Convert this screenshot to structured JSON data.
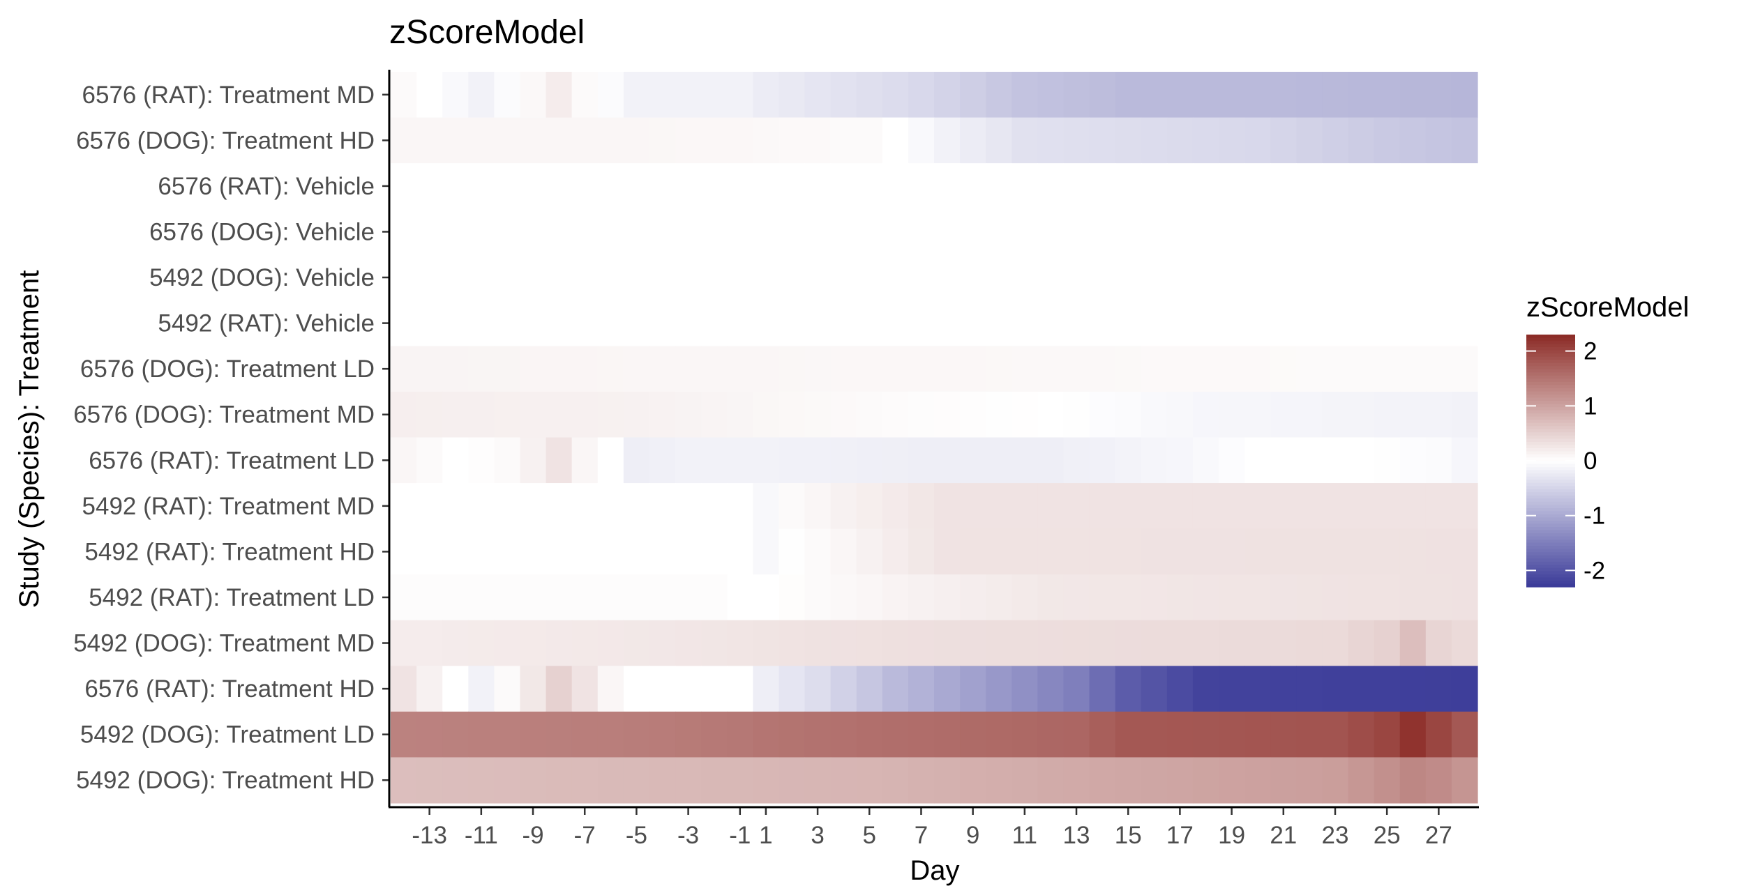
{
  "chart_data": {
    "type": "heatmap",
    "title": "zScoreModel",
    "xlabel": "Day",
    "ylabel": "Study (Species): Treatment",
    "x_ticks": [
      -13,
      -11,
      -9,
      -7,
      -5,
      -3,
      -1,
      1,
      3,
      5,
      7,
      9,
      11,
      13,
      15,
      17,
      19,
      21,
      23,
      25,
      27
    ],
    "x_range": [
      -14,
      28
    ],
    "days": [
      -14,
      -13,
      -12,
      -11,
      -10,
      -9,
      -8,
      -7,
      -6,
      -5,
      -4,
      -3,
      -2,
      -1,
      1,
      2,
      3,
      4,
      5,
      6,
      7,
      8,
      9,
      10,
      11,
      12,
      13,
      14,
      15,
      16,
      17,
      18,
      19,
      20,
      21,
      22,
      23,
      24,
      25,
      26,
      27,
      28
    ],
    "grid": false,
    "legend": {
      "title": "zScoreModel",
      "position": "right",
      "breaks": [
        2,
        1,
        0,
        -1,
        -2
      ],
      "range": [
        -2.3,
        2.3
      ],
      "colors": {
        "high": "#8b2a25",
        "mid": "#ffffff",
        "low": "#3a3a98"
      }
    },
    "rows": [
      {
        "label": "6576 (RAT): Treatment MD",
        "knots": [
          [
            -14,
            0.05
          ],
          [
            -13,
            0
          ],
          [
            -11,
            -0.15
          ],
          [
            -10,
            -0.05
          ],
          [
            -8,
            0.2
          ],
          [
            -7,
            0.05
          ],
          [
            -5,
            -0.15
          ],
          [
            -1,
            -0.15
          ],
          [
            3,
            -0.3
          ],
          [
            7,
            -0.45
          ],
          [
            11,
            -0.7
          ],
          [
            15,
            -0.8
          ],
          [
            20,
            -0.8
          ],
          [
            28,
            -0.85
          ]
        ]
      },
      {
        "label": "6576 (DOG): Treatment HD",
        "knots": [
          [
            -14,
            0.1
          ],
          [
            -7,
            0.1
          ],
          [
            0,
            0.08
          ],
          [
            5,
            0.05
          ],
          [
            6,
            0
          ],
          [
            8,
            -0.15
          ],
          [
            11,
            -0.35
          ],
          [
            15,
            -0.4
          ],
          [
            20,
            -0.45
          ],
          [
            24,
            -0.6
          ],
          [
            28,
            -0.7
          ]
        ]
      },
      {
        "label": "6576 (RAT): Vehicle",
        "knots": [
          [
            -14,
            0
          ],
          [
            28,
            0
          ]
        ]
      },
      {
        "label": "6576 (DOG): Vehicle",
        "knots": [
          [
            -14,
            0
          ],
          [
            28,
            0
          ]
        ]
      },
      {
        "label": "5492 (DOG): Vehicle",
        "knots": [
          [
            -14,
            0
          ],
          [
            28,
            0
          ]
        ]
      },
      {
        "label": "5492 (RAT): Vehicle",
        "knots": [
          [
            -14,
            0
          ],
          [
            28,
            0
          ]
        ]
      },
      {
        "label": "6576 (DOG): Treatment LD",
        "knots": [
          [
            -14,
            0.12
          ],
          [
            -5,
            0.1
          ],
          [
            10,
            0.08
          ],
          [
            20,
            0.06
          ],
          [
            28,
            0.05
          ]
        ]
      },
      {
        "label": "6576 (DOG): Treatment MD",
        "knots": [
          [
            -14,
            0.18
          ],
          [
            -5,
            0.15
          ],
          [
            5,
            0.05
          ],
          [
            12,
            0
          ],
          [
            18,
            -0.1
          ],
          [
            28,
            -0.15
          ]
        ]
      },
      {
        "label": "6576 (RAT): Treatment LD",
        "knots": [
          [
            -14,
            0.1
          ],
          [
            -12,
            0
          ],
          [
            -10,
            0.05
          ],
          [
            -9,
            0.15
          ],
          [
            -8,
            0.3
          ],
          [
            -7,
            0.1
          ],
          [
            -6,
            0
          ],
          [
            -5,
            -0.2
          ],
          [
            -3,
            -0.15
          ],
          [
            1,
            -0.15
          ],
          [
            7,
            -0.2
          ],
          [
            12,
            -0.2
          ],
          [
            17,
            -0.1
          ],
          [
            20,
            0
          ],
          [
            24,
            0
          ],
          [
            27,
            -0.05
          ],
          [
            28,
            -0.1
          ]
        ]
      },
      {
        "label": "5492 (RAT): Treatment MD",
        "knots": [
          [
            -14,
            0
          ],
          [
            -1,
            0
          ],
          [
            1,
            -0.08
          ],
          [
            2,
            0.05
          ],
          [
            4,
            0.15
          ],
          [
            8,
            0.3
          ],
          [
            28,
            0.3
          ]
        ]
      },
      {
        "label": "5492 (RAT): Treatment HD",
        "knots": [
          [
            -14,
            0
          ],
          [
            -1,
            0
          ],
          [
            1,
            -0.08
          ],
          [
            3,
            0.05
          ],
          [
            6,
            0.2
          ],
          [
            8,
            0.3
          ],
          [
            28,
            0.32
          ]
        ]
      },
      {
        "label": "5492 (RAT): Treatment LD",
        "knots": [
          [
            -14,
            0.03
          ],
          [
            -2,
            0.03
          ],
          [
            0,
            -0.02
          ],
          [
            3,
            0.05
          ],
          [
            7,
            0.15
          ],
          [
            12,
            0.25
          ],
          [
            28,
            0.32
          ]
        ]
      },
      {
        "label": "5492 (DOG): Treatment MD",
        "knots": [
          [
            -14,
            0.2
          ],
          [
            -5,
            0.25
          ],
          [
            8,
            0.35
          ],
          [
            23,
            0.4
          ],
          [
            25,
            0.5
          ],
          [
            26,
            0.7
          ],
          [
            27,
            0.45
          ],
          [
            28,
            0.4
          ]
        ]
      },
      {
        "label": "6576 (RAT): Treatment HD",
        "knots": [
          [
            -14,
            0.3
          ],
          [
            -13,
            0.15
          ],
          [
            -12,
            0
          ],
          [
            -11,
            -0.15
          ],
          [
            -10,
            0.05
          ],
          [
            -9,
            0.25
          ],
          [
            -8,
            0.5
          ],
          [
            -7,
            0.3
          ],
          [
            -6,
            0.1
          ],
          [
            -5,
            0
          ],
          [
            -1,
            0
          ],
          [
            3,
            -0.4
          ],
          [
            6,
            -0.8
          ],
          [
            9,
            -1.1
          ],
          [
            13,
            -1.5
          ],
          [
            15,
            -1.9
          ],
          [
            18,
            -2.2
          ],
          [
            28,
            -2.25
          ]
        ]
      },
      {
        "label": "5492 (DOG): Treatment LD",
        "knots": [
          [
            -14,
            1.35
          ],
          [
            -5,
            1.4
          ],
          [
            5,
            1.55
          ],
          [
            13,
            1.65
          ],
          [
            15,
            1.8
          ],
          [
            23,
            1.85
          ],
          [
            25,
            2.0
          ],
          [
            26,
            2.2
          ],
          [
            27,
            2.0
          ],
          [
            28,
            1.8
          ]
        ]
      },
      {
        "label": "5492 (DOG): Treatment HD",
        "knots": [
          [
            -14,
            0.7
          ],
          [
            -5,
            0.75
          ],
          [
            5,
            0.8
          ],
          [
            15,
            0.95
          ],
          [
            23,
            1.05
          ],
          [
            25,
            1.2
          ],
          [
            26,
            1.3
          ],
          [
            27,
            1.25
          ],
          [
            28,
            1.15
          ]
        ]
      }
    ]
  }
}
